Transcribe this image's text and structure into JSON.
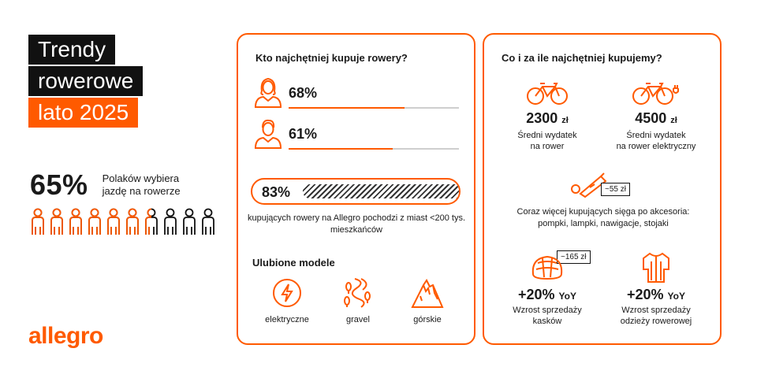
{
  "title": {
    "line1": "Trendy",
    "line2": "rowerowe",
    "line3": "lato 2025"
  },
  "stat": {
    "value": "65%",
    "text": "Polaków wybiera jazdę na rowerze",
    "fraction": 0.65
  },
  "logo": "allegro",
  "who": {
    "title": "Kto najchętniej kupuje rowery?",
    "women_pct": "68%",
    "women_value": 68,
    "men_pct": "61%",
    "men_value": 61,
    "town_pct": "83%",
    "town_value": 83,
    "town_caption": "kupujących rowery na Allegro pochodzi z miast <200 tys. mieszkańców"
  },
  "models": {
    "title": "Ulubione modele",
    "items": [
      {
        "label": "elektryczne",
        "icon": "electric-bolt-icon"
      },
      {
        "label": "gravel",
        "icon": "gravel-road-icon"
      },
      {
        "label": "górskie",
        "icon": "mountain-icon"
      }
    ]
  },
  "spending": {
    "title": "Co i za ile najchętniej kupujemy?",
    "bike": {
      "value": "2300",
      "currency": "zł",
      "desc1": "Średni wydatek",
      "desc2": "na rower",
      "icon": "bicycle-icon"
    },
    "ebike": {
      "value": "4500",
      "currency": "zł",
      "desc1": "Średni wydatek",
      "desc2": "na rower elektryczny",
      "icon": "electric-bicycle-icon"
    },
    "accessory_price": "~55 zł",
    "accessories_line1": "Coraz więcej kupujących sięga po akcesoria:",
    "accessories_line2": "pompki, lampki, nawigacje, stojaki",
    "helmet": {
      "price": "~165 zł",
      "value": "+20%",
      "suffix": "YoY",
      "desc1": "Wzrost sprzedaży",
      "desc2": "kasków",
      "icon": "helmet-icon"
    },
    "jersey": {
      "value": "+20%",
      "suffix": "YoY",
      "desc1": "Wzrost sprzedaży",
      "desc2": "odzieży rowerowej",
      "icon": "jersey-icon"
    }
  },
  "colors": {
    "accent": "#ff5a00",
    "dark": "#111111",
    "track": "#cfcfcf"
  }
}
